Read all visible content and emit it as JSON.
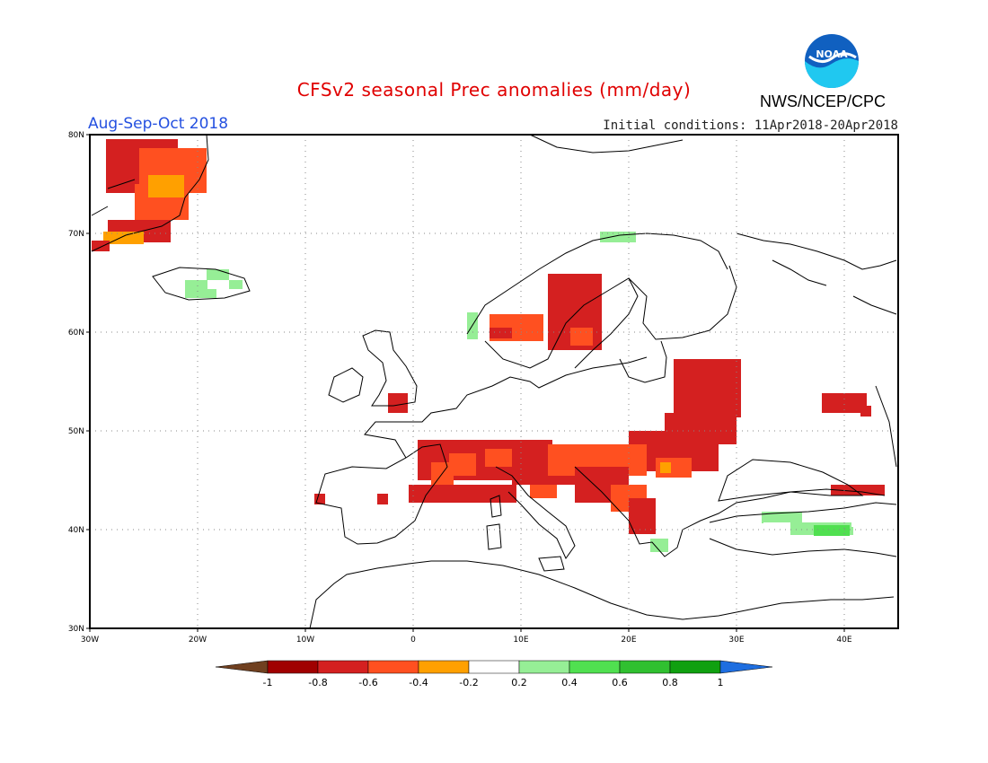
{
  "title": "CFSv2 seasonal Prec anomalies (mm/day)",
  "season": "Aug-Sep-Oct 2018",
  "initial_conditions": "Initial conditions: 11Apr2018-20Apr2018",
  "agency": "NWS/NCEP/CPC",
  "logo_text": "NOAA",
  "logo_icon": "noaa-logo",
  "map": {
    "lon_range": [
      -30,
      45
    ],
    "lat_range": [
      30,
      80
    ],
    "lon_labels": [
      "30W",
      "20W",
      "10W",
      "0",
      "10E",
      "20E",
      "30E",
      "40E"
    ],
    "lat_labels": [
      "80N",
      "70N",
      "60N",
      "50N",
      "40N",
      "30N"
    ],
    "grid": "dotted"
  },
  "legend": {
    "ticks": [
      "-1",
      "-0.8",
      "-0.6",
      "-0.4",
      "-0.2",
      "0.2",
      "0.4",
      "0.6",
      "0.8",
      "1"
    ],
    "colors": [
      "#704020",
      "#a00000",
      "#d42020",
      "#ff5020",
      "#ffa000",
      "#ffffff",
      "#96ee96",
      "#50e050",
      "#30c030",
      "#10a010",
      "#1e6ee0"
    ]
  },
  "colors": {
    "title": "#e00000",
    "season": "#2450e0",
    "noaa_blue": "#1060c0",
    "noaa_cyan": "#20c8f0"
  }
}
